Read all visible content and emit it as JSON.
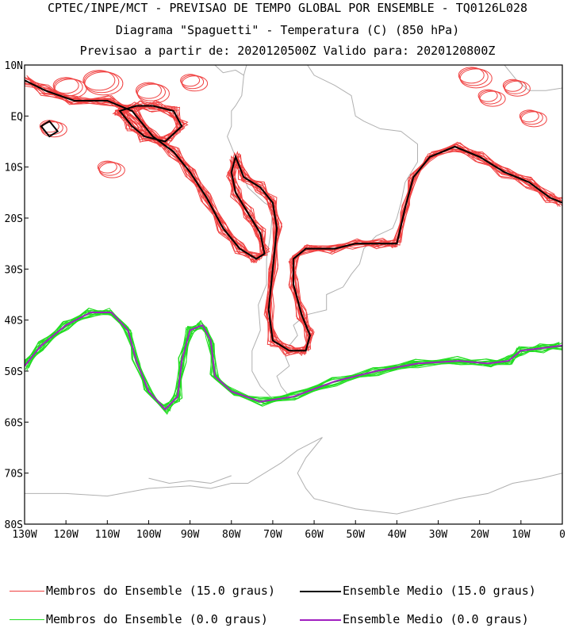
{
  "header": {
    "line1": "CPTEC/INPE/MCT - PREVISAO DE TEMPO GLOBAL POR ENSEMBLE - TQ0126L028",
    "line2": "Diagrama \"Spaguetti\" - Temperatura (C) (850 hPa)",
    "line3": "Previsao a partir de: 2020120500Z  Valido para: 2020120800Z"
  },
  "map": {
    "lat_labels": [
      "10N",
      "EQ",
      "10S",
      "20S",
      "30S",
      "40S",
      "50S",
      "60S",
      "70S",
      "80S"
    ],
    "lon_labels": [
      "130W",
      "120W",
      "110W",
      "100W",
      "90W",
      "80W",
      "70W",
      "60W",
      "50W",
      "40W",
      "30W",
      "20W",
      "10W",
      "0"
    ],
    "lat_range": [
      -80,
      10
    ],
    "lon_range": [
      -130,
      0
    ],
    "colors": {
      "member_15": "#f04040",
      "mean_15": "#000000",
      "member_0": "#22dd22",
      "mean_0": "#a020c0",
      "coast": "#b0b0b0"
    },
    "contours": {
      "mean_15_pacific": [
        [
          -130,
          7
        ],
        [
          -125,
          5
        ],
        [
          -118,
          3
        ],
        [
          -110,
          3
        ],
        [
          -104,
          1
        ],
        [
          -99,
          -4
        ],
        [
          -94,
          -7
        ],
        [
          -90,
          -11
        ],
        [
          -86,
          -16
        ],
        [
          -82,
          -22
        ],
        [
          -78,
          -26
        ],
        [
          -74,
          -28
        ],
        [
          -72,
          -27
        ],
        [
          -73,
          -23
        ],
        [
          -76,
          -19
        ],
        [
          -79,
          -15
        ],
        [
          -80,
          -11
        ],
        [
          -79,
          -8
        ],
        [
          -77,
          -12
        ],
        [
          -73,
          -14
        ],
        [
          -70,
          -17
        ],
        [
          -69,
          -22
        ],
        [
          -70,
          -30
        ],
        [
          -71,
          -38
        ],
        [
          -70,
          -44
        ],
        [
          -66,
          -46
        ],
        [
          -62,
          -46
        ],
        [
          -61,
          -43
        ],
        [
          -63,
          -39
        ],
        [
          -65,
          -33
        ],
        [
          -65,
          -28
        ],
        [
          -62,
          -26
        ],
        [
          -55,
          -26
        ],
        [
          -50,
          -25
        ],
        [
          -44,
          -25
        ],
        [
          -40,
          -25
        ],
        [
          -38,
          -18
        ],
        [
          -36,
          -12
        ],
        [
          -32,
          -8
        ],
        [
          -26,
          -6
        ],
        [
          -20,
          -8
        ],
        [
          -14,
          -11
        ],
        [
          -8,
          -13
        ],
        [
          -3,
          -16
        ],
        [
          0,
          -17
        ]
      ],
      "mean_15_loop_a": [
        [
          -107,
          1
        ],
        [
          -103,
          2
        ],
        [
          -99,
          2
        ],
        [
          -94,
          1
        ],
        [
          -92,
          -2
        ],
        [
          -96,
          -5
        ],
        [
          -101,
          -4
        ],
        [
          -104,
          -2
        ],
        [
          -107,
          1
        ]
      ],
      "mean_15_loop_b": [
        [
          -126,
          -2
        ],
        [
          -124,
          -1
        ],
        [
          -122,
          -3
        ],
        [
          -124,
          -4
        ],
        [
          -126,
          -2
        ]
      ],
      "mean_0": [
        [
          -130,
          -49
        ],
        [
          -126,
          -45
        ],
        [
          -120,
          -41
        ],
        [
          -114,
          -38.5
        ],
        [
          -109,
          -38.5
        ],
        [
          -105,
          -42
        ],
        [
          -103,
          -48
        ],
        [
          -100,
          -54
        ],
        [
          -96,
          -57.5
        ],
        [
          -93,
          -55
        ],
        [
          -92,
          -48
        ],
        [
          -90,
          -42
        ],
        [
          -87,
          -41
        ],
        [
          -85,
          -44
        ],
        [
          -84,
          -51
        ],
        [
          -80,
          -54
        ],
        [
          -73,
          -56
        ],
        [
          -65,
          -55
        ],
        [
          -55,
          -52
        ],
        [
          -45,
          -50
        ],
        [
          -35,
          -48.5
        ],
        [
          -25,
          -48
        ],
        [
          -18,
          -48.5
        ],
        [
          -13,
          -48
        ],
        [
          -10,
          -46
        ],
        [
          -5,
          -45.5
        ],
        [
          0,
          -45
        ]
      ]
    },
    "member_count": 14
  },
  "legend": {
    "items": [
      {
        "label": "Membros do Ensemble (15.0 graus)",
        "color_key": "member_15"
      },
      {
        "label": "Ensemble Medio (15.0 graus)",
        "color_key": "mean_15"
      },
      {
        "label": "Membros do Ensemble (0.0 graus)",
        "color_key": "member_0"
      },
      {
        "label": "Ensemble Medio (0.0 graus)",
        "color_key": "mean_0"
      }
    ]
  }
}
